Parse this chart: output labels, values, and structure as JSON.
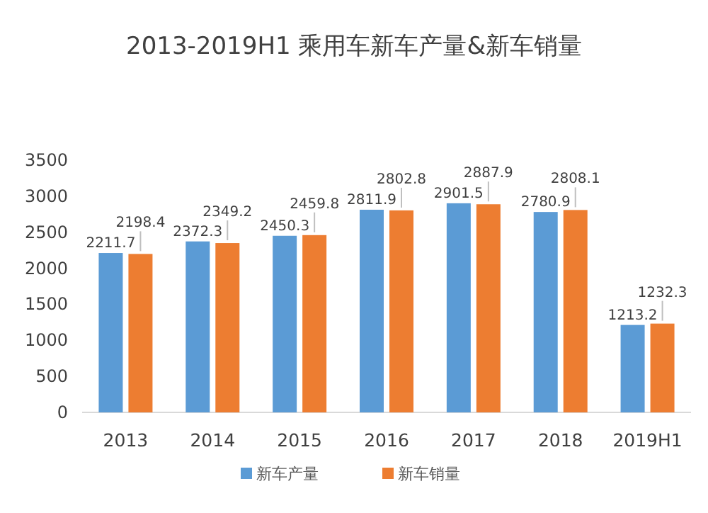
{
  "chart_data": {
    "type": "bar",
    "title": "2013-2019H1 乘用车新车产量&新车销量",
    "categories": [
      "2013",
      "2014",
      "2015",
      "2016",
      "2017",
      "2018",
      "2019H1"
    ],
    "series": [
      {
        "name": "新车产量",
        "color": "#5b9bd5",
        "values": [
          2211.7,
          2372.3,
          2450.3,
          2811.9,
          2901.5,
          2780.9,
          1213.2
        ]
      },
      {
        "name": "新车销量",
        "color": "#ed7d31",
        "values": [
          2198.4,
          2349.2,
          2459.8,
          2802.8,
          2887.9,
          2808.1,
          1232.3
        ]
      }
    ],
    "ylim": [
      0,
      3500
    ],
    "yticks": [
      0,
      500,
      1000,
      1500,
      2000,
      2500,
      3000,
      3500
    ],
    "data_labels": true,
    "legend": "bottom",
    "grid": false
  }
}
